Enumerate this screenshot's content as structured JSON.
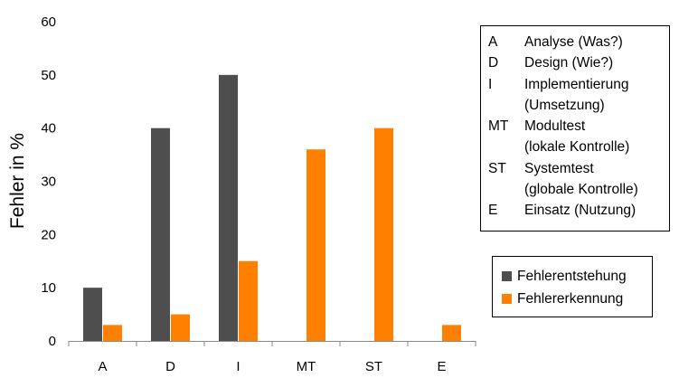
{
  "chart_data": {
    "type": "bar",
    "categories": [
      "A",
      "D",
      "I",
      "MT",
      "ST",
      "E"
    ],
    "series": [
      {
        "name": "Fehlerentstehung",
        "values": [
          10,
          40,
          50,
          0,
          0,
          0
        ],
        "color": "#4d4e4d"
      },
      {
        "name": "Fehlererkennung",
        "values": [
          3,
          5,
          15,
          36,
          40,
          3
        ],
        "color": "#ff8000"
      }
    ],
    "xlabel": "",
    "ylabel": "Fehler in %",
    "ylim": [
      0,
      60
    ],
    "yticks": [
      0,
      10,
      20,
      30,
      40,
      50,
      60
    ],
    "grid": false,
    "legend_position": "right"
  },
  "abbreviations": [
    {
      "key": "A",
      "desc": "Analyse (Was?)"
    },
    {
      "key": "D",
      "desc": "Design (Wie?)"
    },
    {
      "key": "I",
      "desc": "Implementierung\n(Umsetzung)"
    },
    {
      "key": "MT",
      "desc": "Modultest\n(lokale Kontrolle)"
    },
    {
      "key": "ST",
      "desc": "Systemtest\n(globale Kontrolle)"
    },
    {
      "key": "E",
      "desc": "Einsatz (Nutzung)"
    }
  ]
}
